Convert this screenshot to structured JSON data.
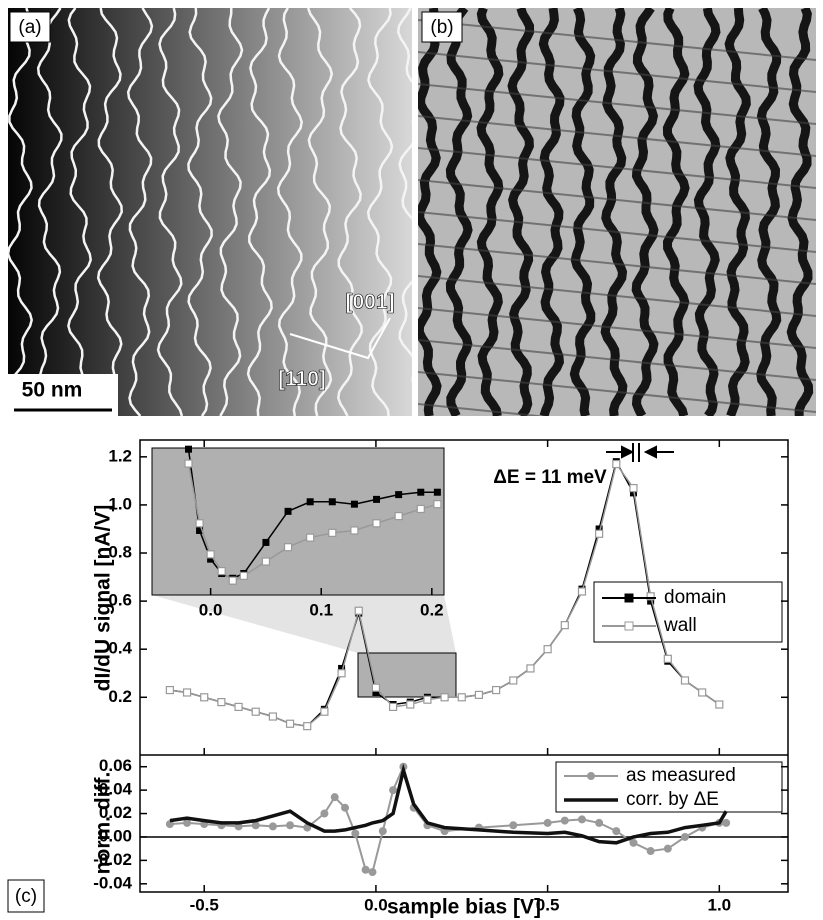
{
  "panels": {
    "a": {
      "label": "(a)",
      "scale_bar": "50 nm",
      "direction_1": "[001]",
      "direction_2": "[110]"
    },
    "b": {
      "label": "(b)"
    },
    "c": {
      "label": "(c)"
    }
  },
  "chart_data": [
    {
      "type": "line",
      "y_label": "dI/dU signal [nA/V]",
      "annotation": "ΔE = 11 meV",
      "legend": "right",
      "xlim": [
        -0.687,
        1.2
      ],
      "ylim": [
        -0.04,
        1.27
      ],
      "yticks": [
        0.2,
        0.4,
        0.6,
        0.8,
        {
          "value": 1,
          "label": "1.0"
        },
        1.2
      ],
      "x": [
        -0.6,
        -0.55,
        -0.5,
        -0.45,
        -0.4,
        -0.35,
        -0.3,
        -0.25,
        -0.2,
        -0.15,
        -0.1,
        -0.05,
        0.0,
        0.05,
        0.1,
        0.15,
        0.2,
        0.25,
        0.3,
        0.35,
        0.4,
        0.45,
        0.5,
        0.55,
        0.6,
        0.65,
        0.7,
        0.75,
        0.8,
        0.85,
        0.9,
        0.95,
        1.0
      ],
      "series": [
        {
          "name": "domain",
          "color": "#000000",
          "values": [
            0.23,
            0.22,
            0.2,
            0.18,
            0.16,
            0.14,
            0.12,
            0.09,
            0.08,
            0.15,
            0.32,
            0.55,
            0.22,
            0.17,
            0.18,
            0.2,
            0.2,
            0.2,
            0.21,
            0.23,
            0.27,
            0.32,
            0.4,
            0.5,
            0.65,
            0.9,
            1.18,
            1.05,
            0.6,
            0.35,
            0.27,
            0.22,
            0.17
          ]
        },
        {
          "name": "wall",
          "color": "#999999",
          "values": [
            0.23,
            0.22,
            0.2,
            0.18,
            0.16,
            0.14,
            0.12,
            0.09,
            0.08,
            0.14,
            0.3,
            0.56,
            0.24,
            0.16,
            0.17,
            0.19,
            0.2,
            0.2,
            0.21,
            0.23,
            0.27,
            0.32,
            0.4,
            0.5,
            0.64,
            0.88,
            1.17,
            1.07,
            0.62,
            0.36,
            0.27,
            0.22,
            0.17
          ]
        }
      ]
    },
    {
      "type": "line",
      "xlim": [
        -0.053,
        0.211
      ],
      "ylim": [
        0.63,
        1.245
      ],
      "xticks": [
        {
          "value": 0,
          "label": "0.0"
        },
        0.1,
        0.2
      ],
      "x": [
        -0.02,
        -0.01,
        0.0,
        0.01,
        0.02,
        0.03,
        0.05,
        0.07,
        0.09,
        0.11,
        0.13,
        0.15,
        0.17,
        0.19,
        0.205
      ],
      "series": [
        {
          "name": "domain",
          "color": "#000000",
          "values": [
            1.24,
            0.9,
            0.78,
            0.72,
            0.7,
            0.72,
            0.85,
            0.98,
            1.02,
            1.02,
            1.01,
            1.03,
            1.05,
            1.06,
            1.06
          ]
        },
        {
          "name": "wall",
          "color": "#999999",
          "values": [
            1.18,
            0.93,
            0.8,
            0.73,
            0.69,
            0.71,
            0.77,
            0.83,
            0.87,
            0.89,
            0.9,
            0.93,
            0.96,
            0.99,
            1.01
          ]
        }
      ]
    },
    {
      "type": "line",
      "x_label": "sample bias [V]",
      "y_label": "norm. diff.",
      "legend": "upper right",
      "xlim": [
        -0.687,
        1.2
      ],
      "ylim": [
        -0.047,
        0.07
      ],
      "xticks": [
        -0.5,
        {
          "value": 0,
          "label": "0.0"
        },
        0.5,
        {
          "value": 1,
          "label": "1.0"
        }
      ],
      "yticks": [
        -0.04,
        -0.02,
        {
          "value": 0,
          "label": "0.00"
        },
        0.02,
        0.04,
        0.06
      ],
      "x": [
        -0.6,
        -0.55,
        -0.5,
        -0.45,
        -0.4,
        -0.35,
        -0.3,
        -0.25,
        -0.2,
        -0.15,
        -0.12,
        -0.09,
        -0.06,
        -0.03,
        -0.01,
        0.02,
        0.05,
        0.08,
        0.11,
        0.15,
        0.2,
        0.3,
        0.4,
        0.5,
        0.55,
        0.6,
        0.65,
        0.7,
        0.75,
        0.8,
        0.85,
        0.9,
        0.95,
        1.0,
        1.02
      ],
      "series": [
        {
          "name": "as measured",
          "color": "#999999",
          "values": [
            0.011,
            0.012,
            0.011,
            0.01,
            0.009,
            0.01,
            0.009,
            0.01,
            0.008,
            0.02,
            0.034,
            0.025,
            0.003,
            -0.028,
            -0.03,
            0.005,
            0.04,
            0.06,
            0.025,
            0.01,
            0.005,
            0.008,
            0.01,
            0.012,
            0.014,
            0.015,
            0.012,
            0.005,
            -0.005,
            -0.012,
            -0.01,
            0.0,
            0.008,
            0.012,
            0.012
          ]
        },
        {
          "name": "corr. by ΔE",
          "color": "#111111",
          "values": [
            0.014,
            0.016,
            0.014,
            0.012,
            0.012,
            0.014,
            0.018,
            0.022,
            0.012,
            0.005,
            0.005,
            0.006,
            0.008,
            0.01,
            0.012,
            0.014,
            0.02,
            0.057,
            0.028,
            0.012,
            0.008,
            0.006,
            0.004,
            0.003,
            0.004,
            0.001,
            -0.004,
            -0.005,
            0.0,
            0.003,
            0.004,
            0.008,
            0.01,
            0.012,
            0.022
          ]
        }
      ]
    }
  ]
}
